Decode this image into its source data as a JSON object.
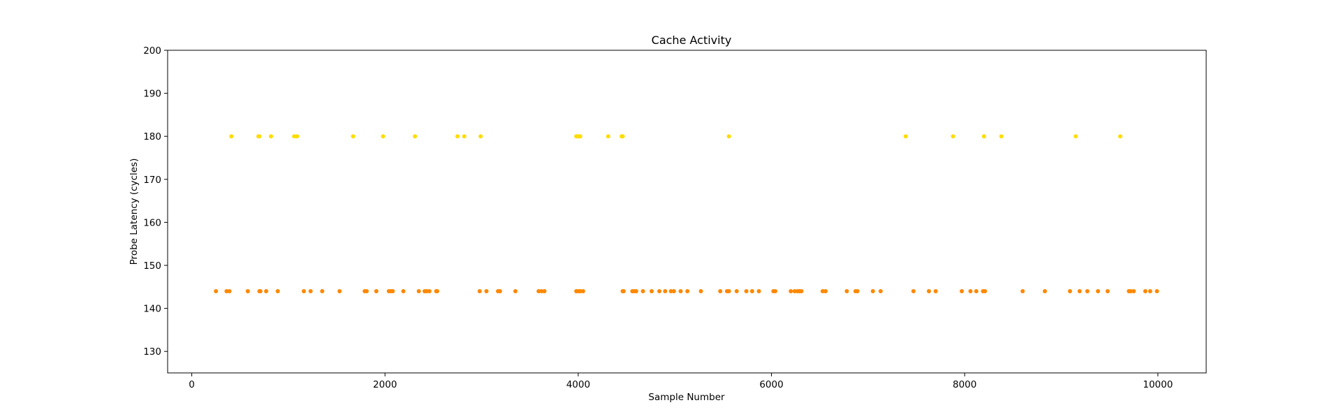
{
  "chart_data": {
    "type": "scatter",
    "title": "Cache Activity",
    "xlabel": "Sample Number",
    "ylabel": "Probe Latency (cycles)",
    "xlim": [
      -250,
      10500
    ],
    "ylim": [
      125,
      200
    ],
    "xticks": [
      0,
      2000,
      4000,
      6000,
      8000,
      10000
    ],
    "yticks": [
      130,
      140,
      150,
      160,
      170,
      180,
      190,
      200
    ],
    "grid": false,
    "series": [
      {
        "color": "#ffdd00",
        "y": 180,
        "x": [
          410,
          690,
          700,
          820,
          1060,
          1090,
          1670,
          1980,
          2310,
          2750,
          2820,
          2990,
          3980,
          4000,
          4020,
          4310,
          4450,
          4460,
          5560,
          7390,
          7880,
          8200,
          8380,
          9150,
          9610
        ]
      },
      {
        "color": "#ff8800",
        "y": 144,
        "x": [
          250,
          360,
          390,
          580,
          700,
          710,
          770,
          890,
          1160,
          1230,
          1350,
          1530,
          1790,
          1810,
          1910,
          2040,
          2060,
          2080,
          2190,
          2350,
          2410,
          2430,
          2460,
          2530,
          2540,
          2980,
          3050,
          3170,
          3190,
          3350,
          3590,
          3620,
          3650,
          3980,
          4000,
          4020,
          4050,
          4460,
          4470,
          4560,
          4580,
          4600,
          4670,
          4760,
          4840,
          4900,
          4960,
          4990,
          5060,
          5130,
          5270,
          5470,
          5540,
          5560,
          5640,
          5740,
          5800,
          5870,
          6020,
          6040,
          6200,
          6240,
          6270,
          6290,
          6310,
          6530,
          6560,
          6780,
          6870,
          6890,
          7050,
          7130,
          7470,
          7630,
          7700,
          7970,
          8060,
          8120,
          8190,
          8210,
          8600,
          8830,
          9090,
          9190,
          9270,
          9380,
          9480,
          9700,
          9720,
          9750,
          9870,
          9920,
          9990
        ]
      }
    ]
  }
}
